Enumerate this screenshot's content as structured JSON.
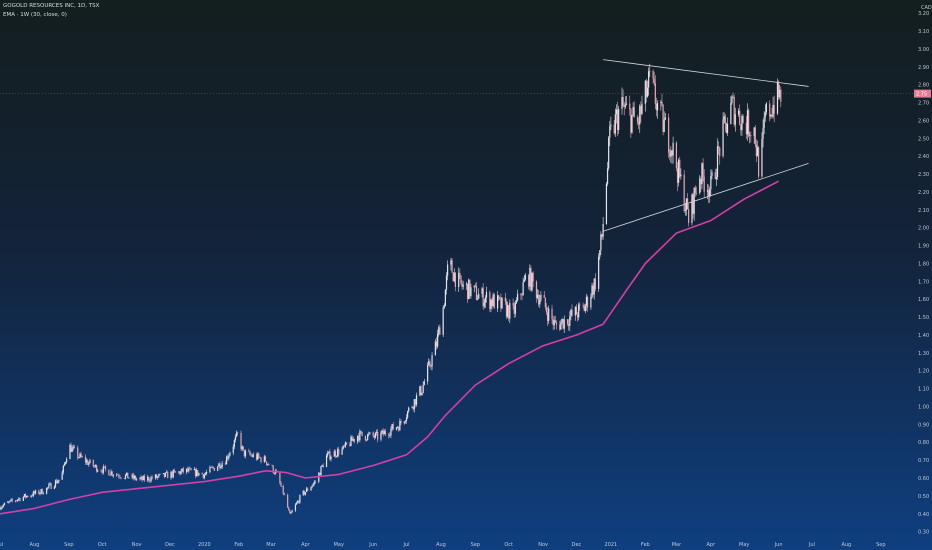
{
  "header": {
    "symbol_line": "GOGOLD RESOURCES INC, 1D, TSX",
    "indicator_line": "EMA · 1W (30, close, 0)"
  },
  "colors": {
    "ema": "#d63fa6",
    "candle_up": "#e2e6ec",
    "candle_down": "#e6a8b2",
    "trendline": "#d4d8de",
    "price_marker": "#e57b93"
  },
  "chart_data": {
    "type": "candlestick",
    "title": "GOGOLD RESOURCES INC, 1D, TSX",
    "currency": "CAD",
    "y_axis": {
      "unit_label": "CAD",
      "ticks": [
        "3.20",
        "3.10",
        "3.00",
        "2.90",
        "2.80",
        "2.70",
        "2.60",
        "2.50",
        "2.40",
        "2.30",
        "2.20",
        "2.10",
        "2.00",
        "1.90",
        "1.80",
        "1.70",
        "1.60",
        "1.50",
        "1.40",
        "1.30",
        "1.20",
        "1.10",
        "1.00",
        "0.90",
        "0.80",
        "0.70",
        "0.60",
        "0.50",
        "0.40",
        "0.30"
      ],
      "ylim": [
        0.27,
        3.24
      ]
    },
    "x_axis": {
      "ticks": [
        "Jul",
        "Aug",
        "Sep",
        "Oct",
        "Nov",
        "Dec",
        "2020",
        "Feb",
        "Mar",
        "Apr",
        "May",
        "Jun",
        "Jul",
        "Aug",
        "Sep",
        "Oct",
        "Nov",
        "Dec",
        "2021",
        "Feb",
        "Mar",
        "Apr",
        "May",
        "Jun",
        "Jul",
        "Aug",
        "Sep"
      ],
      "range": [
        "2019-07-01",
        "2021-09-30"
      ]
    },
    "last_price": 2.75,
    "price_path": [
      [
        "2019-07-01",
        0.44
      ],
      [
        "2019-07-20",
        0.49
      ],
      [
        "2019-08-10",
        0.53
      ],
      [
        "2019-08-25",
        0.6
      ],
      [
        "2019-09-01",
        0.78
      ],
      [
        "2019-09-10",
        0.72
      ],
      [
        "2019-09-25",
        0.66
      ],
      [
        "2019-10-15",
        0.62
      ],
      [
        "2019-11-05",
        0.59
      ],
      [
        "2019-11-25",
        0.61
      ],
      [
        "2019-12-15",
        0.64
      ],
      [
        "2020-01-01",
        0.62
      ],
      [
        "2020-01-20",
        0.7
      ],
      [
        "2020-01-31",
        0.84
      ],
      [
        "2020-02-05",
        0.74
      ],
      [
        "2020-02-25",
        0.7
      ],
      [
        "2020-03-05",
        0.63
      ],
      [
        "2020-03-12",
        0.52
      ],
      [
        "2020-03-18",
        0.39
      ],
      [
        "2020-03-28",
        0.5
      ],
      [
        "2020-04-10",
        0.58
      ],
      [
        "2020-04-20",
        0.72
      ],
      [
        "2020-05-05",
        0.76
      ],
      [
        "2020-05-18",
        0.84
      ],
      [
        "2020-06-05",
        0.83
      ],
      [
        "2020-06-25",
        0.9
      ],
      [
        "2020-07-05",
        1.0
      ],
      [
        "2020-07-15",
        1.1
      ],
      [
        "2020-07-28",
        1.35
      ],
      [
        "2020-08-03",
        1.55
      ],
      [
        "2020-08-08",
        1.8
      ],
      [
        "2020-08-18",
        1.68
      ],
      [
        "2020-09-05",
        1.62
      ],
      [
        "2020-09-20",
        1.58
      ],
      [
        "2020-10-05",
        1.52
      ],
      [
        "2020-10-18",
        1.74
      ],
      [
        "2020-10-30",
        1.6
      ],
      [
        "2020-11-12",
        1.45
      ],
      [
        "2020-11-25",
        1.5
      ],
      [
        "2020-12-08",
        1.55
      ],
      [
        "2020-12-18",
        1.7
      ],
      [
        "2020-12-24",
        1.95
      ],
      [
        "2020-12-31",
        2.5
      ],
      [
        "2021-01-10",
        2.68
      ],
      [
        "2021-01-25",
        2.58
      ],
      [
        "2021-02-05",
        2.82
      ],
      [
        "2021-02-15",
        2.62
      ],
      [
        "2021-02-25",
        2.45
      ],
      [
        "2021-03-05",
        2.25
      ],
      [
        "2021-03-12",
        2.05
      ],
      [
        "2021-03-22",
        2.3
      ],
      [
        "2021-04-01",
        2.22
      ],
      [
        "2021-04-10",
        2.48
      ],
      [
        "2021-04-20",
        2.68
      ],
      [
        "2021-04-30",
        2.6
      ],
      [
        "2021-05-10",
        2.55
      ],
      [
        "2021-05-15",
        2.3
      ],
      [
        "2021-05-20",
        2.62
      ],
      [
        "2021-05-28",
        2.7
      ],
      [
        "2021-06-03",
        2.75
      ]
    ],
    "ema_path": [
      [
        "2019-07-01",
        0.4
      ],
      [
        "2019-08-01",
        0.43
      ],
      [
        "2019-09-01",
        0.48
      ],
      [
        "2019-10-01",
        0.52
      ],
      [
        "2019-11-01",
        0.54
      ],
      [
        "2019-12-01",
        0.56
      ],
      [
        "2020-01-01",
        0.58
      ],
      [
        "2020-02-01",
        0.61
      ],
      [
        "2020-02-25",
        0.64
      ],
      [
        "2020-03-15",
        0.63
      ],
      [
        "2020-04-01",
        0.6
      ],
      [
        "2020-05-01",
        0.62
      ],
      [
        "2020-06-01",
        0.67
      ],
      [
        "2020-07-01",
        0.73
      ],
      [
        "2020-07-20",
        0.83
      ],
      [
        "2020-08-05",
        0.95
      ],
      [
        "2020-09-01",
        1.12
      ],
      [
        "2020-10-01",
        1.24
      ],
      [
        "2020-11-01",
        1.34
      ],
      [
        "2020-12-01",
        1.4
      ],
      [
        "2020-12-25",
        1.46
      ],
      [
        "2021-01-15",
        1.65
      ],
      [
        "2021-02-01",
        1.8
      ],
      [
        "2021-03-01",
        1.97
      ],
      [
        "2021-04-01",
        2.04
      ],
      [
        "2021-05-01",
        2.16
      ],
      [
        "2021-06-01",
        2.26
      ]
    ],
    "trendlines": [
      {
        "name": "upper",
        "from": [
          "2020-12-25",
          2.94
        ],
        "to": [
          "2021-06-28",
          2.79
        ]
      },
      {
        "name": "lower",
        "from": [
          "2020-12-25",
          1.98
        ],
        "to": [
          "2021-06-28",
          2.36
        ]
      }
    ]
  }
}
